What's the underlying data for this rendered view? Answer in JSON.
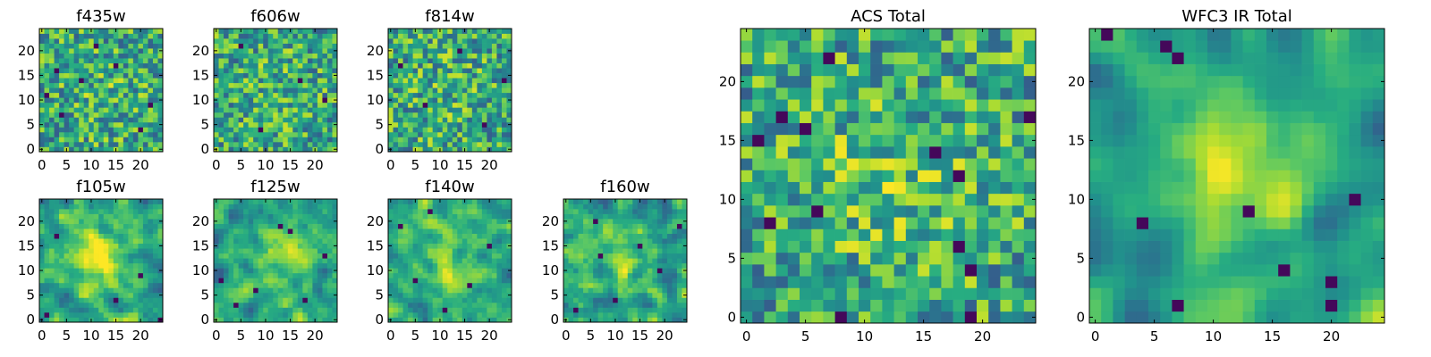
{
  "figure_title": "",
  "colormap": "viridis",
  "colors": {
    "low": "#440154",
    "mid_low": "#3b528b",
    "mid": "#21918c",
    "mid_high": "#5ec962",
    "high": "#fde725"
  },
  "chart_data": [
    {
      "id": "f435w",
      "type": "heatmap",
      "title": "f435w",
      "grid_size": 25,
      "xlim": [
        0,
        24
      ],
      "ylim": [
        0,
        24
      ],
      "xticks": [
        0,
        5,
        10,
        15,
        20
      ],
      "yticks": [
        0,
        5,
        10,
        15,
        20
      ],
      "seed": 435,
      "smooth": 0,
      "bright_center": [
        12,
        12
      ],
      "center_strength": 0.05,
      "dark_spots": [
        [
          3,
          16
        ],
        [
          8,
          14
        ],
        [
          15,
          17
        ],
        [
          4,
          7
        ],
        [
          20,
          4
        ],
        [
          11,
          21
        ],
        [
          1,
          11
        ],
        [
          22,
          9
        ]
      ]
    },
    {
      "id": "f606w",
      "type": "heatmap",
      "title": "f606w",
      "grid_size": 25,
      "xlim": [
        0,
        24
      ],
      "ylim": [
        0,
        24
      ],
      "xticks": [
        0,
        5,
        10,
        15,
        20
      ],
      "yticks": [
        0,
        5,
        10,
        15,
        20
      ],
      "seed": 606,
      "smooth": 0,
      "bright_center": [
        12,
        12
      ],
      "center_strength": 0.05,
      "dark_spots": [
        [
          5,
          21
        ],
        [
          17,
          14
        ],
        [
          9,
          4
        ],
        [
          22,
          10
        ]
      ]
    },
    {
      "id": "f814w",
      "type": "heatmap",
      "title": "f814w",
      "grid_size": 25,
      "xlim": [
        0,
        24
      ],
      "ylim": [
        0,
        24
      ],
      "xticks": [
        0,
        5,
        10,
        15,
        20
      ],
      "yticks": [
        0,
        5,
        10,
        15,
        20
      ],
      "seed": 814,
      "smooth": 0,
      "bright_center": [
        12,
        12
      ],
      "center_strength": 0.05,
      "dark_spots": [
        [
          2,
          17
        ],
        [
          14,
          20
        ],
        [
          19,
          5
        ],
        [
          7,
          9
        ],
        [
          23,
          14
        ]
      ]
    },
    {
      "id": "f105w",
      "type": "heatmap",
      "title": "f105w",
      "grid_size": 25,
      "xlim": [
        0,
        24
      ],
      "ylim": [
        0,
        24
      ],
      "xticks": [
        0,
        5,
        10,
        15,
        20
      ],
      "yticks": [
        0,
        5,
        10,
        15,
        20
      ],
      "seed": 105,
      "smooth": 1,
      "bright_center": [
        11,
        12
      ],
      "center_strength": 0.35,
      "dark_spots": [
        [
          15,
          4
        ],
        [
          3,
          17
        ],
        [
          20,
          9
        ],
        [
          1,
          1
        ],
        [
          24,
          0
        ]
      ]
    },
    {
      "id": "f125w",
      "type": "heatmap",
      "title": "f125w",
      "grid_size": 25,
      "xlim": [
        0,
        24
      ],
      "ylim": [
        0,
        24
      ],
      "xticks": [
        0,
        5,
        10,
        15,
        20
      ],
      "yticks": [
        0,
        5,
        10,
        15,
        20
      ],
      "seed": 125,
      "smooth": 1,
      "bright_center": [
        13,
        12
      ],
      "center_strength": 0.25,
      "dark_spots": [
        [
          13,
          19
        ],
        [
          15,
          18
        ],
        [
          1,
          8
        ],
        [
          4,
          3
        ],
        [
          18,
          4
        ],
        [
          22,
          13
        ],
        [
          8,
          6
        ]
      ]
    },
    {
      "id": "f140w",
      "type": "heatmap",
      "title": "f140w",
      "grid_size": 25,
      "xlim": [
        0,
        24
      ],
      "ylim": [
        0,
        24
      ],
      "xticks": [
        0,
        5,
        10,
        15,
        20
      ],
      "yticks": [
        0,
        5,
        10,
        15,
        20
      ],
      "seed": 140,
      "smooth": 1,
      "bright_center": [
        12,
        12
      ],
      "center_strength": 0.25,
      "dark_spots": [
        [
          2,
          19
        ],
        [
          5,
          8
        ],
        [
          16,
          7
        ],
        [
          11,
          2
        ],
        [
          20,
          15
        ],
        [
          8,
          22
        ]
      ]
    },
    {
      "id": "f160w",
      "type": "heatmap",
      "title": "f160w",
      "grid_size": 25,
      "xlim": [
        0,
        24
      ],
      "ylim": [
        0,
        24
      ],
      "xticks": [
        0,
        5,
        10,
        15,
        20
      ],
      "yticks": [
        0,
        5,
        10,
        15,
        20
      ],
      "seed": 160,
      "smooth": 1,
      "bright_center": [
        12,
        12
      ],
      "center_strength": 0.25,
      "dark_spots": [
        [
          6,
          20
        ],
        [
          15,
          15
        ],
        [
          19,
          10
        ],
        [
          23,
          19
        ],
        [
          10,
          4
        ],
        [
          2,
          2
        ],
        [
          7,
          13
        ]
      ]
    },
    {
      "id": "acs-total",
      "type": "heatmap",
      "title": "ACS Total",
      "grid_size": 25,
      "xlim": [
        0,
        24
      ],
      "ylim": [
        0,
        24
      ],
      "xticks": [
        0,
        5,
        10,
        15,
        20
      ],
      "yticks": [
        0,
        5,
        10,
        15,
        20
      ],
      "seed": 77,
      "smooth": 0,
      "bright_center": [
        12,
        11
      ],
      "center_strength": 0.12,
      "dark_spots": [
        [
          7,
          22
        ],
        [
          3,
          17
        ],
        [
          5,
          16
        ],
        [
          1,
          15
        ],
        [
          16,
          14
        ],
        [
          18,
          12
        ],
        [
          6,
          9
        ],
        [
          2,
          8
        ],
        [
          18,
          6
        ],
        [
          19,
          4
        ],
        [
          8,
          0
        ],
        [
          19,
          0
        ],
        [
          24,
          17
        ]
      ]
    },
    {
      "id": "wfc3-ir-total",
      "type": "heatmap",
      "title": "WFC3 IR Total",
      "grid_size": 25,
      "xlim": [
        0,
        24
      ],
      "ylim": [
        0,
        24
      ],
      "xticks": [
        0,
        5,
        10,
        15,
        20
      ],
      "yticks": [
        0,
        5,
        10,
        15,
        20
      ],
      "seed": 31,
      "smooth": 2,
      "bright_center": [
        12,
        12
      ],
      "center_strength": 0.45,
      "dark_spots": [
        [
          1,
          24
        ],
        [
          6,
          23
        ],
        [
          7,
          22
        ],
        [
          4,
          8
        ],
        [
          16,
          4
        ],
        [
          20,
          3
        ],
        [
          7,
          1
        ],
        [
          20,
          1
        ],
        [
          13,
          9
        ],
        [
          22,
          10
        ]
      ]
    }
  ]
}
